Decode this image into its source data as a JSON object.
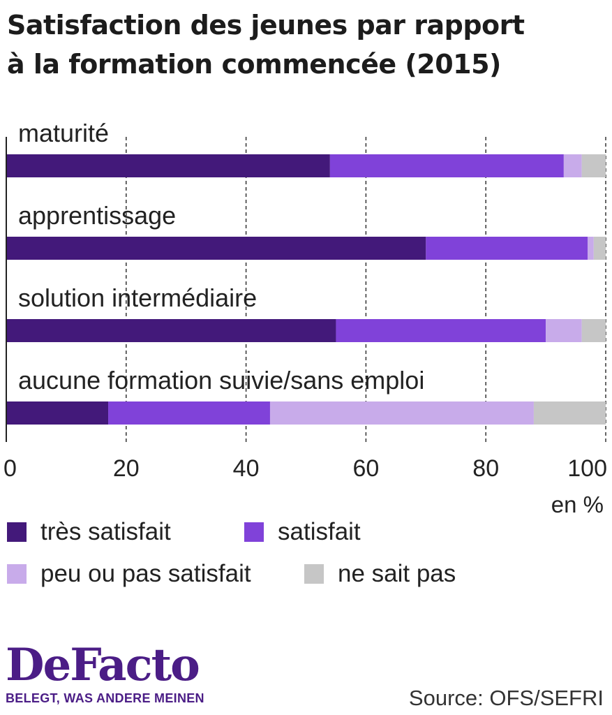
{
  "chart_data": {
    "type": "bar",
    "orientation": "horizontal",
    "stacked": true,
    "title": "Satisfaction des jeunes par rapport à la formation commencée (2015)",
    "title_lines": [
      "Satisfaction des jeunes par rapport",
      "à la formation commencée (2015)"
    ],
    "categories": [
      "maturité",
      "apprentissage",
      "solution intermédiaire",
      "aucune formation suivie/sans emploi"
    ],
    "series": [
      {
        "name": "très satisfait",
        "color": "#43197a",
        "values": [
          54,
          70,
          55,
          17
        ]
      },
      {
        "name": "satisfait",
        "color": "#8042d9",
        "values": [
          39,
          27,
          35,
          27
        ]
      },
      {
        "name": "peu ou pas satisfait",
        "color": "#c8abea",
        "values": [
          3,
          1,
          6,
          44
        ]
      },
      {
        "name": "ne sait pas",
        "color": "#c6c6c6",
        "values": [
          4,
          2,
          4,
          12
        ]
      }
    ],
    "xlim": [
      0,
      100
    ],
    "xticks": [
      0,
      20,
      40,
      60,
      80,
      100
    ],
    "xlabel": "en %",
    "grid": "vertical dashed",
    "legend_position": "bottom"
  },
  "logo": {
    "name": "DeFacto",
    "tagline": "BELEGT, WAS ANDERE MEINEN"
  },
  "source": "Source: OFS/SEFRI"
}
